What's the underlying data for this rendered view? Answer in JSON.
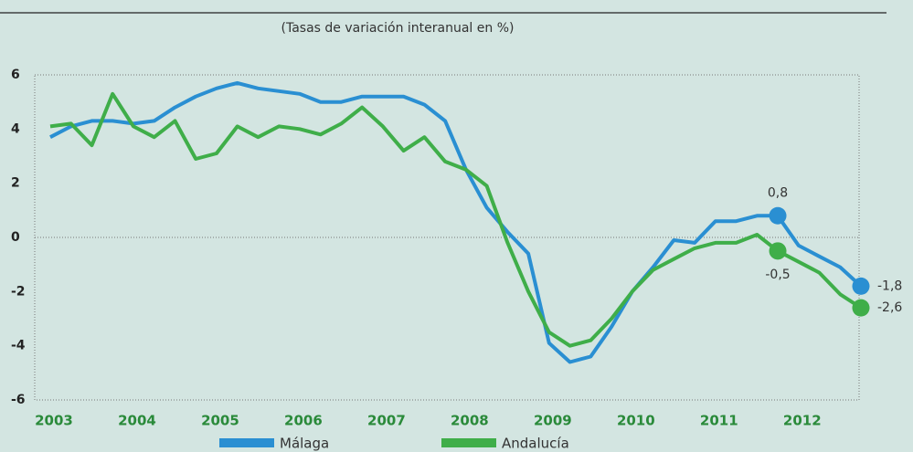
{
  "chart_data": {
    "type": "line",
    "subtitle": "(Tasas de variación interanual en %)",
    "categories": [
      "2003",
      null,
      null,
      null,
      "2004",
      null,
      null,
      null,
      "2005",
      null,
      null,
      null,
      "2006",
      null,
      null,
      null,
      "2007",
      null,
      null,
      null,
      "2008",
      null,
      null,
      null,
      "2009",
      null,
      null,
      null,
      "2010",
      null,
      null,
      null,
      "2011",
      null,
      null,
      null,
      "2012",
      null,
      null,
      null
    ],
    "series": [
      {
        "name": "Málaga",
        "color": "#2a8fd2",
        "values": [
          3.7,
          4.1,
          4.3,
          4.3,
          4.2,
          4.3,
          4.8,
          5.2,
          5.5,
          5.7,
          5.5,
          5.4,
          5.3,
          5.0,
          5.0,
          5.2,
          5.2,
          5.2,
          4.9,
          4.3,
          2.5,
          1.1,
          0.2,
          -0.6,
          -3.9,
          -4.6,
          -4.4,
          -3.3,
          -2.0,
          -1.1,
          -0.1,
          -0.2,
          0.6,
          0.6,
          0.8,
          0.8,
          -0.3,
          -0.7,
          -1.1,
          -1.8
        ],
        "value_labels": [
          null,
          null,
          null,
          null,
          null,
          null,
          null,
          null,
          null,
          null,
          null,
          null,
          null,
          null,
          null,
          null,
          null,
          null,
          null,
          null,
          null,
          null,
          null,
          null,
          null,
          null,
          null,
          null,
          null,
          null,
          null,
          null,
          null,
          null,
          null,
          "0,8",
          null,
          null,
          null,
          "-1,8"
        ]
      },
      {
        "name": "Andalucía",
        "color": "#3fae49",
        "values": [
          4.1,
          4.2,
          3.4,
          5.3,
          4.1,
          3.7,
          4.3,
          2.9,
          3.1,
          4.1,
          3.7,
          4.1,
          4.0,
          3.8,
          4.2,
          4.8,
          4.1,
          3.2,
          3.7,
          2.8,
          2.5,
          1.9,
          -0.2,
          -2.0,
          -3.5,
          -4.0,
          -3.8,
          -3.0,
          -2.0,
          -1.2,
          -0.8,
          -0.4,
          -0.2,
          -0.2,
          0.1,
          -0.5,
          -0.9,
          -1.3,
          -2.1,
          -2.6
        ],
        "value_labels": [
          null,
          null,
          null,
          null,
          null,
          null,
          null,
          null,
          null,
          null,
          null,
          null,
          null,
          null,
          null,
          null,
          null,
          null,
          null,
          null,
          null,
          null,
          null,
          null,
          null,
          null,
          null,
          null,
          null,
          null,
          null,
          null,
          null,
          null,
          null,
          "-0,5",
          null,
          null,
          null,
          "-2,6"
        ]
      }
    ],
    "ylim": [
      -6,
      6
    ],
    "yticks": [
      6,
      4,
      2,
      0,
      -2,
      -4,
      -6
    ]
  }
}
